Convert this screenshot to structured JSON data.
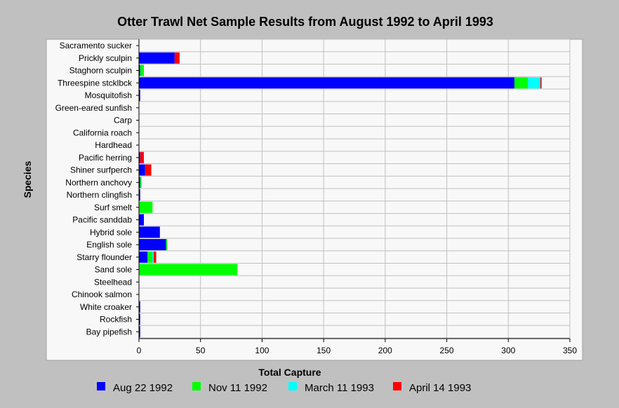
{
  "chart_data": {
    "type": "bar",
    "orientation": "horizontal",
    "stacked": true,
    "title": "Otter Trawl Net Sample Results from August 1992 to April 1993",
    "xlabel": "Total Capture",
    "ylabel": "Species",
    "xlim": [
      0,
      350
    ],
    "xticks": [
      0,
      50,
      100,
      150,
      200,
      250,
      300,
      350
    ],
    "grid": true,
    "legend_position": "bottom",
    "categories": [
      "Sacramento sucker",
      "Prickly sculpin",
      "Staghorn sculpin",
      "Threespine stcklbck",
      "Mosquitofish",
      "Green-eared sunfish",
      "Carp",
      "California roach",
      "Hardhead",
      "Pacific herring",
      "Shiner surfperch",
      "Northern anchovy",
      "Northern clingfish",
      "Surf smelt",
      "Pacific sanddab",
      "Hybrid sole",
      "English sole",
      "Starry flounder",
      "Sand sole",
      "Steelhead",
      "Chinook salmon",
      "White croaker",
      "Rockfish",
      "Bay pipefish"
    ],
    "series": [
      {
        "name": "Aug 22 1992",
        "color": "#0000ff",
        "values": [
          0,
          29,
          1,
          305,
          1,
          0,
          0,
          0,
          0,
          1,
          5,
          1,
          1,
          0,
          4,
          17,
          22,
          7,
          0,
          0,
          0,
          1,
          1,
          1
        ]
      },
      {
        "name": "Nov 11 1992",
        "color": "#00ff00",
        "values": [
          0,
          0,
          3,
          11,
          0,
          0,
          0,
          0,
          0,
          0,
          0,
          1,
          0,
          11,
          0,
          0,
          1,
          4,
          80,
          0,
          0,
          0,
          0,
          0
        ]
      },
      {
        "name": "March 11 1993",
        "color": "#00ffff",
        "values": [
          0,
          0,
          0,
          10,
          0,
          0,
          0,
          0,
          0,
          0,
          0,
          0,
          0,
          0,
          0,
          0,
          0,
          1,
          0,
          0,
          0,
          0,
          0,
          0
        ]
      },
      {
        "name": "April 14 1993",
        "color": "#ff0000",
        "values": [
          0,
          4,
          0,
          1,
          0,
          0,
          0,
          0,
          0,
          3,
          5,
          0,
          0,
          0,
          0,
          0,
          0,
          2,
          0,
          0,
          0,
          0,
          0,
          0
        ]
      }
    ]
  }
}
